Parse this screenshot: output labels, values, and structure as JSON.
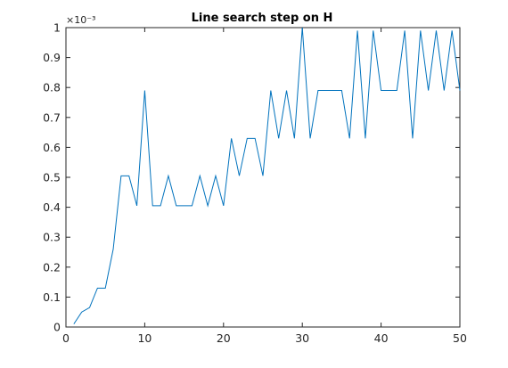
{
  "chart_data": {
    "type": "line",
    "title": "Line search step on H",
    "xlabel": "",
    "ylabel": "",
    "y_exponent_label": "×10⁻³",
    "xlim": [
      0,
      50
    ],
    "ylim": [
      0,
      1
    ],
    "xticks": [
      0,
      10,
      20,
      30,
      40,
      50
    ],
    "yticks": [
      0,
      0.1,
      0.2,
      0.3,
      0.4,
      0.5,
      0.6,
      0.7,
      0.8,
      0.9,
      1
    ],
    "grid": false,
    "line_color": "#0072BD",
    "series": [
      {
        "x": [
          1,
          2,
          3,
          4,
          5,
          6,
          7,
          8,
          9,
          10,
          11,
          12,
          13,
          14,
          15,
          16,
          17,
          18,
          19,
          20,
          21,
          22,
          23,
          24,
          25,
          26,
          27,
          28,
          29,
          30,
          31,
          32,
          33,
          34,
          35,
          36,
          37,
          38,
          39,
          40,
          41,
          42,
          43,
          44,
          45,
          46,
          47,
          48,
          49,
          50
        ],
        "values": [
          0.01,
          0.05,
          0.065,
          0.13,
          0.13,
          0.26,
          0.505,
          0.505,
          0.405,
          0.79,
          0.405,
          0.405,
          0.505,
          0.405,
          0.405,
          0.405,
          0.505,
          0.405,
          0.505,
          0.405,
          0.63,
          0.505,
          0.63,
          0.63,
          0.505,
          0.79,
          0.63,
          0.79,
          0.63,
          1.0,
          0.63,
          0.79,
          0.79,
          0.79,
          0.79,
          0.63,
          0.99,
          0.63,
          0.99,
          0.79,
          0.79,
          0.79,
          0.99,
          0.63,
          0.99,
          0.79,
          0.99,
          0.79,
          0.99,
          0.79
        ]
      }
    ]
  }
}
